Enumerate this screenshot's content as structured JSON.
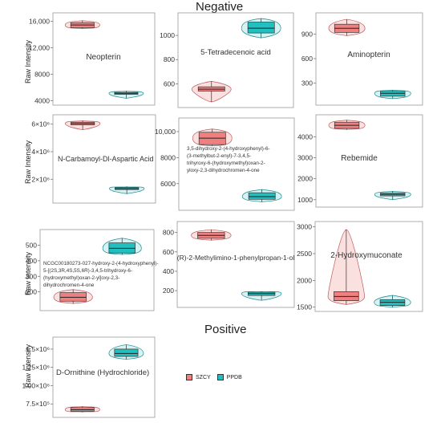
{
  "titles": {
    "negative": "Negative",
    "positive": "Positive"
  },
  "ylabel": "Raw Intensity",
  "colors": {
    "szcy": "#f08080",
    "ppdb": "#20c0c0"
  },
  "legend": [
    {
      "label": "SZCY",
      "color": "#f08080"
    },
    {
      "label": "PPDB",
      "color": "#20c0c0"
    }
  ],
  "chart_data": [
    {
      "type": "box",
      "title": "Neopterin",
      "ylim": [
        3800,
        16800
      ],
      "ticks": [
        {
          "v": 4000,
          "t": "4000"
        },
        {
          "v": 8000,
          "t": "8000"
        },
        {
          "v": 12000,
          "t": "12,000"
        },
        {
          "v": 16000,
          "t": "16,000"
        }
      ],
      "series": [
        {
          "name": "SZCY",
          "min": 14900,
          "q1": 15050,
          "median": 15450,
          "q3": 15800,
          "max": 16100
        },
        {
          "name": "PPDB",
          "min": 4350,
          "q1": 4950,
          "median": 5100,
          "q3": 5250,
          "max": 5450
        }
      ]
    },
    {
      "type": "box",
      "title": "5-Tetradecenoic acid",
      "ylim": [
        430,
        1160
      ],
      "ticks": [
        {
          "v": 600,
          "t": "600"
        },
        {
          "v": 800,
          "t": "800"
        },
        {
          "v": 1000,
          "t": "1000"
        }
      ],
      "series": [
        {
          "name": "SZCY",
          "min": 450,
          "q1": 540,
          "median": 555,
          "q3": 575,
          "max": 620
        },
        {
          "name": "PPDB",
          "min": 980,
          "q1": 1020,
          "median": 1060,
          "q3": 1110,
          "max": 1140
        }
      ]
    },
    {
      "type": "box",
      "title": "Aminopterin",
      "ylim": [
        70,
        1120
      ],
      "ticks": [
        {
          "v": 300,
          "t": "300"
        },
        {
          "v": 600,
          "t": "600"
        },
        {
          "v": 900,
          "t": "900"
        }
      ],
      "series": [
        {
          "name": "SZCY",
          "min": 880,
          "q1": 920,
          "median": 970,
          "q3": 1020,
          "max": 1080
        },
        {
          "name": "PPDB",
          "min": 110,
          "q1": 140,
          "median": 175,
          "q3": 200,
          "max": 215
        }
      ]
    },
    {
      "type": "box",
      "title": "N-Carbamoyl-Dl-Aspartic Acid",
      "ylim": [
        500000,
        6450000
      ],
      "ticks": [
        {
          "v": 2000000,
          "t": "2×10⁶"
        },
        {
          "v": 4000000,
          "t": "4×10⁶"
        },
        {
          "v": 6000000,
          "t": "6×10⁶"
        }
      ],
      "series": [
        {
          "name": "SZCY",
          "min": 5600000,
          "q1": 5950000,
          "median": 6050000,
          "q3": 6150000,
          "max": 6250000
        },
        {
          "name": "PPDB",
          "min": 950000,
          "q1": 1250000,
          "median": 1320000,
          "q3": 1400000,
          "max": 1450000
        }
      ]
    },
    {
      "type": "box",
      "title": "3,5-dihydroxy-2-(4-hydroxyphenyl)-6-(3-methylbut-2-enyl)-7-3,4,5-trihyroxy-6-(hydroxymethyl)oxan-2-yloxy-2,3-dihydrochromen-4-one",
      "ylim": [
        4200,
        10800
      ],
      "ticks": [
        {
          "v": 6000,
          "t": "6000"
        },
        {
          "v": 8000,
          "t": "8000"
        },
        {
          "v": 10000,
          "t": "10,000"
        }
      ],
      "series": [
        {
          "name": "SZCY",
          "min": 8900,
          "q1": 9000,
          "median": 9500,
          "q3": 9950,
          "max": 10200
        },
        {
          "name": "PPDB",
          "min": 4600,
          "q1": 4800,
          "median": 5000,
          "q3": 5300,
          "max": 5550
        }
      ]
    },
    {
      "type": "box",
      "title": "Rebemide",
      "ylim": [
        800,
        4900
      ],
      "ticks": [
        {
          "v": 1000,
          "t": "1000"
        },
        {
          "v": 2000,
          "t": "2000"
        },
        {
          "v": 3000,
          "t": "3000"
        },
        {
          "v": 4000,
          "t": "4000"
        }
      ],
      "series": [
        {
          "name": "SZCY",
          "min": 4350,
          "q1": 4400,
          "median": 4550,
          "q3": 4700,
          "max": 4800
        },
        {
          "name": "PPDB",
          "min": 1000,
          "q1": 1180,
          "median": 1250,
          "q3": 1320,
          "max": 1400
        }
      ]
    },
    {
      "type": "box",
      "title": "NCGC00180273-027-hydroxy-2-(4-hydroxyphenyl)-5-[(2S,3R,4S,5S,6R)-3,4,5-trihydroxy-6-(hydroxymethyl)oxan-2-yl]oxy-2,3-dihydrochromen-4-one",
      "ylim": [
        100,
        580
      ],
      "ticks": [
        {
          "v": 200,
          "t": "200"
        },
        {
          "v": 300,
          "t": "300"
        },
        {
          "v": 400,
          "t": "400"
        },
        {
          "v": 500,
          "t": "500"
        }
      ],
      "series": [
        {
          "name": "SZCY",
          "min": 125,
          "q1": 140,
          "median": 165,
          "q3": 195,
          "max": 215
        },
        {
          "name": "PPDB",
          "min": 440,
          "q1": 450,
          "median": 480,
          "q3": 515,
          "max": 545
        }
      ]
    },
    {
      "type": "box",
      "title": "(R)-2-Methylimino-1-phenylpropan-1-ol",
      "ylim": [
        60,
        880
      ],
      "ticks": [
        {
          "v": 200,
          "t": "200"
        },
        {
          "v": 400,
          "t": "400"
        },
        {
          "v": 600,
          "t": "600"
        },
        {
          "v": 800,
          "t": "800"
        }
      ],
      "series": [
        {
          "name": "SZCY",
          "min": 720,
          "q1": 740,
          "median": 770,
          "q3": 800,
          "max": 830
        },
        {
          "name": "PPDB",
          "min": 100,
          "q1": 150,
          "median": 170,
          "q3": 185,
          "max": 190
        }
      ]
    },
    {
      "type": "box",
      "title": "2-Hydroxymuconate",
      "ylim": [
        1480,
        3040
      ],
      "ticks": [
        {
          "v": 1500,
          "t": "1500"
        },
        {
          "v": 2000,
          "t": "2000"
        },
        {
          "v": 2500,
          "t": "2500"
        },
        {
          "v": 3000,
          "t": "3000"
        }
      ],
      "series": [
        {
          "name": "SZCY",
          "min": 1550,
          "q1": 1620,
          "median": 1700,
          "q3": 1790,
          "max": 2950
        },
        {
          "name": "PPDB",
          "min": 1500,
          "q1": 1530,
          "median": 1590,
          "q3": 1640,
          "max": 1720
        }
      ]
    },
    {
      "type": "box",
      "title": "D-Ornithine (Hydrochloride)",
      "ylim": [
        610000,
        1620000
      ],
      "ticks": [
        {
          "v": 750000,
          "t": "7.5×10⁵"
        },
        {
          "v": 1000000,
          "t": "1.00×10⁶"
        },
        {
          "v": 1250000,
          "t": "1.25×10⁶"
        },
        {
          "v": 1500000,
          "t": "1.5×10⁶"
        }
      ],
      "series": [
        {
          "name": "SZCY",
          "min": 640000,
          "q1": 650000,
          "median": 670000,
          "q3": 700000,
          "max": 715000
        },
        {
          "name": "PPDB",
          "min": 1360000,
          "q1": 1400000,
          "median": 1440000,
          "q3": 1500000,
          "max": 1560000
        }
      ]
    }
  ]
}
